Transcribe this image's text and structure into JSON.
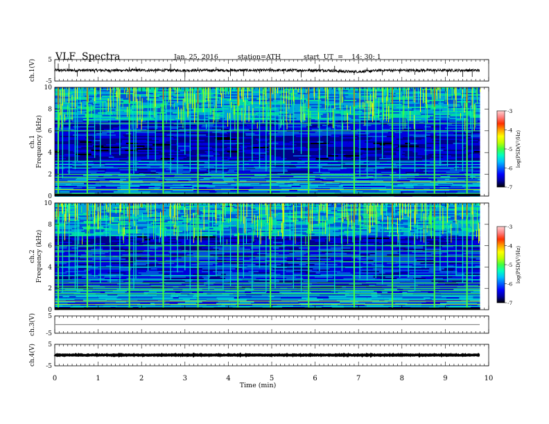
{
  "header": {
    "title": "VLF  Spectra",
    "date": "Jan. 25, 2016",
    "station": "station=ATH",
    "start": "start  UT  =    14: 30: 1"
  },
  "chart_data": {
    "type": "heatmap",
    "xlabel": "Time  (min)",
    "xlim": [
      0,
      10
    ],
    "x_ticks": [
      "0",
      "1",
      "2",
      "3",
      "4",
      "5",
      "6",
      "7",
      "8",
      "9",
      "10"
    ],
    "data_end_min": 9.8,
    "panels": [
      {
        "id": "ch1-wave",
        "type": "line",
        "ylabel": "ch.1(V)",
        "ylim": [
          -5,
          5
        ],
        "y_ticks": [
          "5",
          "-5"
        ],
        "baseline_v": 0.0,
        "noise_amplitude_v": 0.6,
        "dip_v": -0.6,
        "dip_range_min": [
          6.3,
          7.5
        ]
      },
      {
        "id": "ch1-spec",
        "type": "heatmap",
        "ylabel_top": "ch.1",
        "ylabel": "Frequency  (kHz)",
        "ylim": [
          0,
          10
        ],
        "y_ticks": [
          "0",
          "2",
          "4",
          "6",
          "8",
          "10"
        ],
        "colorbar": {
          "label": "log(PSD(V²/Hz)",
          "range": [
            -7,
            -3
          ],
          "ticks": [
            "-7",
            "-6",
            "-5",
            "-4",
            "-3"
          ]
        },
        "bright_bands_khz": [
          6.7,
          6.0,
          3.2,
          2.9,
          2.6,
          2.0,
          1.7,
          1.3,
          1.0,
          0.6,
          0.25
        ],
        "quiet_bands_khz": [
          [
            3.3,
            5.6
          ]
        ],
        "sferic_times_min": [
          0.08,
          0.18,
          0.33,
          0.47,
          0.52,
          0.75,
          0.92,
          1.05,
          1.28,
          1.5,
          1.72,
          1.82,
          1.87,
          2.15,
          2.32,
          2.5,
          2.67,
          2.83,
          3.0,
          3.12,
          3.3,
          3.55,
          3.72,
          3.88,
          4.05,
          4.22,
          4.35,
          4.55,
          4.72,
          4.87,
          4.97,
          5.08,
          5.28,
          5.5,
          5.68,
          5.85,
          6.1,
          6.28,
          6.45,
          6.62,
          6.9,
          7.03,
          7.2,
          7.4,
          7.55,
          7.78,
          7.95,
          8.15,
          8.3,
          8.55,
          8.75,
          8.88,
          9.05,
          9.25,
          9.4,
          9.5,
          9.62
        ]
      },
      {
        "id": "ch2-spec",
        "type": "heatmap",
        "ylabel_top": "ch.2",
        "ylabel": "Frequency  (kHz)",
        "ylim": [
          0,
          10
        ],
        "y_ticks": [
          "0",
          "2",
          "4",
          "6",
          "8",
          "10"
        ],
        "colorbar": {
          "label": "log(PSD(V²/Hz)",
          "range": [
            -7,
            -3
          ],
          "ticks": [
            "-7",
            "-6",
            "-5",
            "-4",
            "-3"
          ]
        },
        "bright_bands_khz": [
          6.0,
          5.5,
          5.0,
          4.5,
          4.0,
          3.2,
          2.8,
          2.5,
          2.2,
          2.0,
          1.8,
          1.5,
          1.3,
          1.0,
          0.8,
          0.5,
          0.3
        ],
        "quiet_bands_khz": [
          [
            6.2,
            6.9
          ]
        ],
        "sferic_times_min": [
          0.08,
          0.18,
          0.33,
          0.47,
          0.52,
          0.75,
          0.92,
          1.05,
          1.28,
          1.5,
          1.72,
          1.82,
          1.87,
          2.15,
          2.32,
          2.5,
          2.67,
          2.83,
          3.0,
          3.12,
          3.3,
          3.55,
          3.72,
          3.88,
          4.05,
          4.22,
          4.35,
          4.55,
          4.72,
          4.87,
          4.97,
          5.08,
          5.28,
          5.5,
          5.68,
          5.85,
          6.1,
          6.28,
          6.45,
          6.62,
          6.9,
          7.03,
          7.2,
          7.4,
          7.55,
          7.78,
          7.95,
          8.15,
          8.3,
          8.55,
          8.75,
          8.88,
          9.05,
          9.25,
          9.4,
          9.5,
          9.62
        ]
      },
      {
        "id": "ch3-wave",
        "type": "line",
        "ylabel": "ch.3(V)",
        "ylim": [
          -5,
          5
        ],
        "y_ticks": [
          "5",
          "-5"
        ],
        "baseline_v": 0.0,
        "noise_amplitude_v": 0.0
      },
      {
        "id": "ch4-wave",
        "type": "line",
        "ylabel": "ch.4(V)",
        "ylim": [
          -5,
          5
        ],
        "y_ticks": [
          "5",
          "-5"
        ],
        "baseline_v": 0.0,
        "noise_amplitude_v": 0.15
      }
    ],
    "colormap": [
      "#000000",
      "#0000a0",
      "#0000ff",
      "#0060ff",
      "#00c0ff",
      "#00ffc0",
      "#40ff40",
      "#c0ff00",
      "#ffff00",
      "#ffa000",
      "#ff3000",
      "#ff8080",
      "#ffd0d0"
    ]
  }
}
